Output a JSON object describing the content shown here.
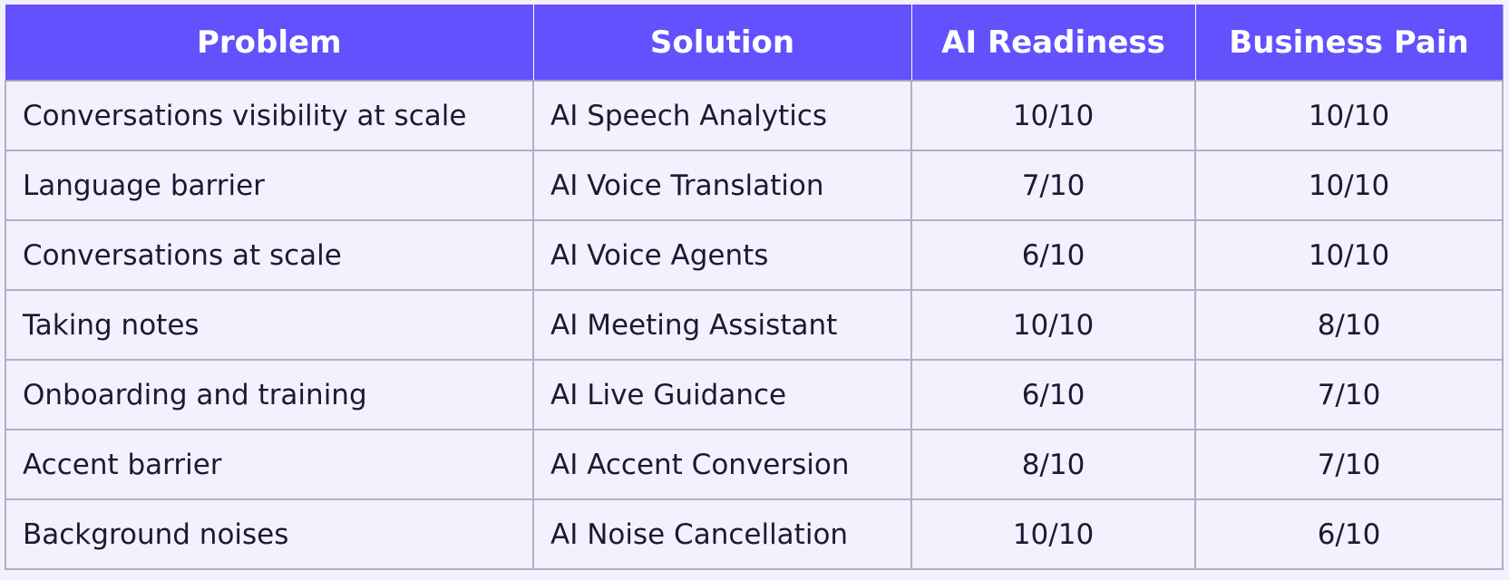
{
  "table": {
    "headers": {
      "problem": "Problem",
      "solution": "Solution",
      "ai_readiness": "AI Readiness",
      "business_pain": "Business Pain"
    },
    "header_color": "#6251fd",
    "rows": [
      {
        "problem": "Conversations visibility at scale",
        "solution": "AI Speech Analytics",
        "ai_readiness": "10/10",
        "business_pain": "10/10"
      },
      {
        "problem": "Language barrier",
        "solution": "AI Voice Translation",
        "ai_readiness": "7/10",
        "business_pain": "10/10"
      },
      {
        "problem": "Conversations at scale",
        "solution": "AI Voice Agents",
        "ai_readiness": "6/10",
        "business_pain": "10/10"
      },
      {
        "problem": "Taking notes",
        "solution": "AI Meeting Assistant",
        "ai_readiness": "10/10",
        "business_pain": "8/10"
      },
      {
        "problem": "Onboarding and training",
        "solution": "AI Live Guidance",
        "ai_readiness": "6/10",
        "business_pain": "7/10"
      },
      {
        "problem": "Accent barrier",
        "solution": "AI Accent Conversion",
        "ai_readiness": "8/10",
        "business_pain": "7/10"
      },
      {
        "problem": "Background noises",
        "solution": "AI Noise Cancellation",
        "ai_readiness": "10/10",
        "business_pain": "6/10"
      }
    ]
  }
}
